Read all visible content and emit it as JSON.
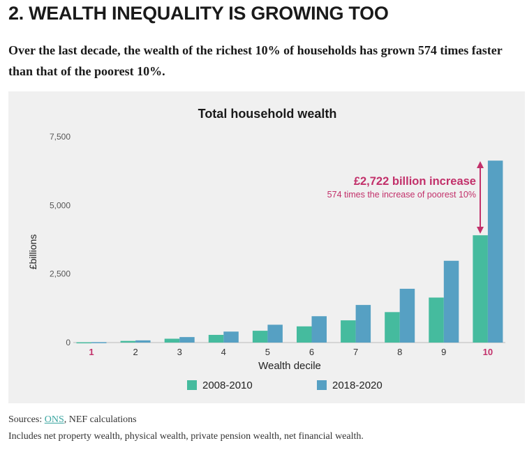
{
  "heading": "2. WEALTH INEQUALITY IS GROWING TOO",
  "lede": "Over the last decade, the wealth of the richest 10% of households has grown 574 times faster than that of the poorest 10%.",
  "sources": {
    "prefix": "Sources: ",
    "link": "ONS",
    "suffix": ", NEF calculations"
  },
  "note": "Includes net property wealth, physical wealth, private pension wealth, net financial wealth.",
  "chart_data": {
    "type": "bar",
    "title": "Total household wealth",
    "xlabel": "Wealth decile",
    "ylabel": "£billions",
    "ylim": [
      0,
      7500
    ],
    "yticks": [
      "0",
      "2,500",
      "5,000",
      "7,500"
    ],
    "ytick_values": [
      0,
      2500,
      5000,
      7500
    ],
    "grid": false,
    "legend_position": "bottom",
    "categories": [
      "1",
      "2",
      "3",
      "4",
      "5",
      "6",
      "7",
      "8",
      "9",
      "10"
    ],
    "highlight_categories": [
      "1",
      "10"
    ],
    "series": [
      {
        "name": "2008-2010",
        "color": "#45bb9e",
        "values": [
          10,
          60,
          140,
          280,
          430,
          590,
          810,
          1110,
          1640,
          3910
        ]
      },
      {
        "name": "2018-2020",
        "color": "#56a0c3",
        "values": [
          15,
          80,
          200,
          400,
          650,
          960,
          1370,
          1960,
          2980,
          6630
        ]
      }
    ],
    "annotation": {
      "title": "£2,722 billion increase",
      "subtitle": "574 times the increase of poorest 10%",
      "color": "#c2306a"
    },
    "axis_color": "#555555",
    "highlight_color": "#c2306a"
  }
}
